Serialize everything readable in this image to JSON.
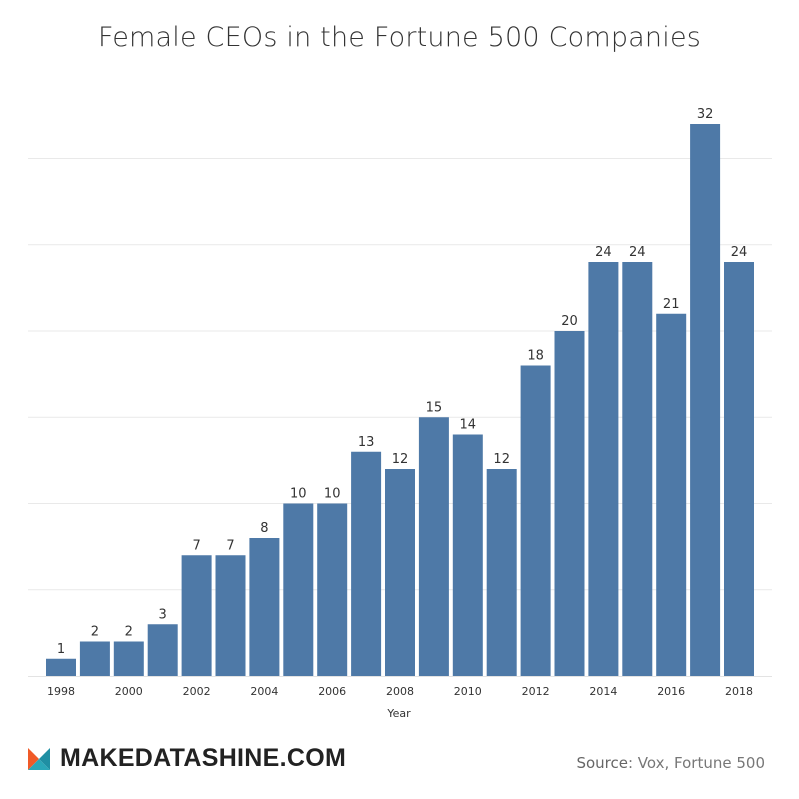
{
  "title": "Female CEOs in the Fortune 500 Companies",
  "colors": {
    "bar": "#4e79a7",
    "grid": "#e9e9e9",
    "logo_orange": "#f05a28",
    "logo_teal": "#2aa7b8"
  },
  "chart_data": {
    "type": "bar",
    "title": "Female CEOs in the Fortune 500 Companies",
    "xlabel": "Year",
    "ylabel": "",
    "ylim": [
      0,
      34
    ],
    "grid": true,
    "categories": [
      "1998",
      "1999",
      "2000",
      "2001",
      "2002",
      "2003",
      "2004",
      "2005",
      "2006",
      "2007",
      "2008",
      "2009",
      "2010",
      "2011",
      "2012",
      "2013",
      "2014",
      "2015",
      "2016",
      "2017",
      "2018"
    ],
    "tick_labels": [
      "1998",
      "",
      "2000",
      "",
      "2002",
      "",
      "2004",
      "",
      "2006",
      "",
      "2008",
      "",
      "2010",
      "",
      "2012",
      "",
      "2014",
      "",
      "2016",
      "",
      "2018"
    ],
    "values": [
      1,
      2,
      2,
      3,
      7,
      7,
      8,
      10,
      10,
      13,
      12,
      15,
      14,
      12,
      18,
      20,
      24,
      24,
      21,
      32,
      24
    ]
  },
  "footer": {
    "logo_text": "MAKEDATASHINE.COM",
    "source_label": "Source",
    "source_text": ": Vox, Fortune 500"
  }
}
